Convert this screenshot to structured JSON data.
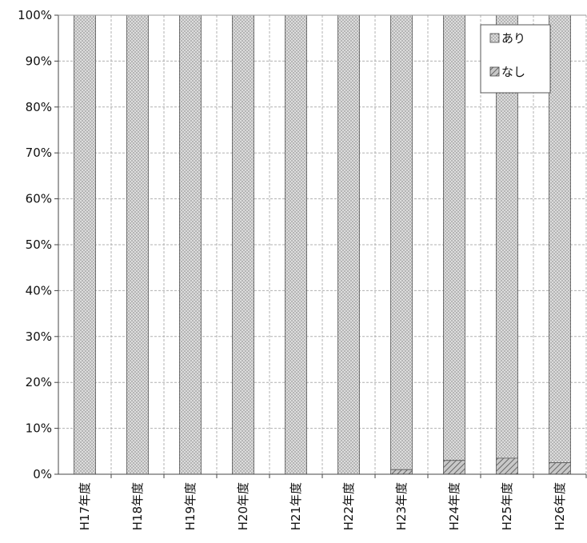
{
  "chart_data": {
    "type": "bar",
    "stacked": true,
    "percent_stacked": true,
    "categories": [
      "H17年度",
      "H18年度",
      "H19年度",
      "H20年度",
      "H21年度",
      "H22年度",
      "H23年度",
      "H24年度",
      "H25年度",
      "H26年度"
    ],
    "series": [
      {
        "name": "なし",
        "values": [
          0,
          0,
          0,
          0,
          0,
          0,
          1,
          3,
          3.5,
          2.5
        ],
        "pattern": "diagonal-hatch"
      },
      {
        "name": "あり",
        "values": [
          100,
          100,
          100,
          100,
          100,
          100,
          99,
          97,
          96.5,
          97.5
        ],
        "pattern": "dotted"
      }
    ],
    "y_ticks": [
      "0%",
      "10%",
      "20%",
      "30%",
      "40%",
      "50%",
      "60%",
      "70%",
      "80%",
      "90%",
      "100%"
    ],
    "ylim": [
      0,
      100
    ],
    "grid": true,
    "legend": {
      "placement": "top-right",
      "entries": [
        "あり",
        "なし"
      ]
    },
    "colors": {
      "bar_fill": "#d9d9d9",
      "dot": "#555555",
      "hatch": "#666666",
      "grid": "#b0b0b0",
      "axis": "#444444"
    }
  }
}
